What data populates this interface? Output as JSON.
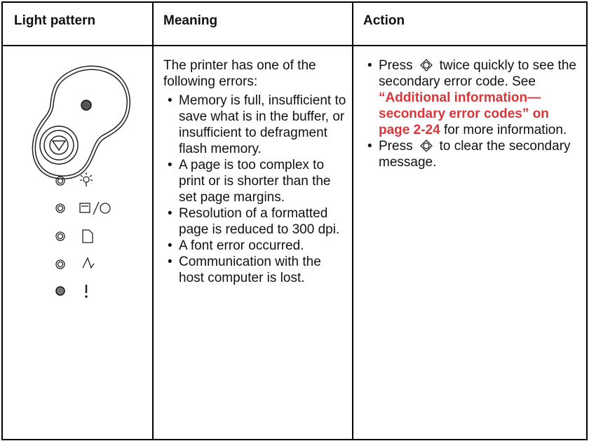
{
  "table": {
    "headers": [
      "Light pattern",
      "Meaning",
      "Action"
    ],
    "meaning": {
      "intro": "The printer has one of the following errors:",
      "items": [
        "Memory is full, insufficient to save what is in the buffer, or insufficient to defragment flash memory.",
        "A page is too complex to print or is shorter than the set page margins.",
        "Resolution of a formatted page is reduced to 300 dpi.",
        "A font error occurred.",
        "Communication with the host computer is lost."
      ]
    },
    "action": {
      "items": [
        {
          "before": "Press",
          "after": "twice quickly to see the secondary error code. See",
          "link": "“Additional information—secondary error codes” on page 2-24",
          "tail": "for more information."
        },
        {
          "before": "Press",
          "after": "to clear the secondary message."
        }
      ]
    }
  }
}
